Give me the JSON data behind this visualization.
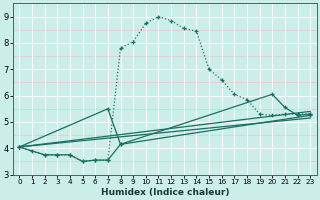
{
  "xlabel": "Humidex (Indice chaleur)",
  "bg_color": "#cceee8",
  "grid_white_color": "#ffffff",
  "grid_pink_color": "#e8c8c8",
  "line_color": "#1a6e62",
  "xlim": [
    -0.5,
    23.5
  ],
  "ylim": [
    3.0,
    9.5
  ],
  "xticks": [
    0,
    1,
    2,
    3,
    4,
    5,
    6,
    7,
    8,
    9,
    10,
    11,
    12,
    13,
    14,
    15,
    16,
    17,
    18,
    19,
    20,
    21,
    22,
    23
  ],
  "yticks": [
    3,
    4,
    5,
    6,
    7,
    8,
    9
  ],
  "series1_x": [
    0,
    1,
    2,
    3,
    4,
    5,
    6,
    7,
    8,
    9,
    10,
    11,
    12,
    13,
    14,
    15,
    16,
    17,
    18,
    19,
    20,
    21,
    22,
    23
  ],
  "series1_y": [
    4.05,
    3.88,
    3.75,
    3.75,
    3.75,
    3.5,
    3.55,
    3.55,
    7.8,
    8.05,
    8.75,
    9.0,
    8.85,
    8.55,
    8.45,
    7.0,
    6.6,
    6.05,
    5.85,
    5.3,
    5.25,
    5.3,
    5.3,
    5.3
  ],
  "series2_x": [
    0,
    2,
    3,
    4,
    5,
    6,
    7,
    8,
    23
  ],
  "series2_y": [
    4.05,
    3.75,
    3.75,
    3.75,
    3.5,
    3.55,
    3.55,
    4.15,
    5.25
  ],
  "series3_x": [
    0,
    7,
    8,
    20,
    21,
    22,
    23
  ],
  "series3_y": [
    4.05,
    5.5,
    4.15,
    6.05,
    5.55,
    5.25,
    5.3
  ],
  "series4_x": [
    0,
    23
  ],
  "series4_y": [
    4.05,
    5.4
  ],
  "series5_x": [
    0,
    23
  ],
  "series5_y": [
    4.05,
    5.15
  ]
}
